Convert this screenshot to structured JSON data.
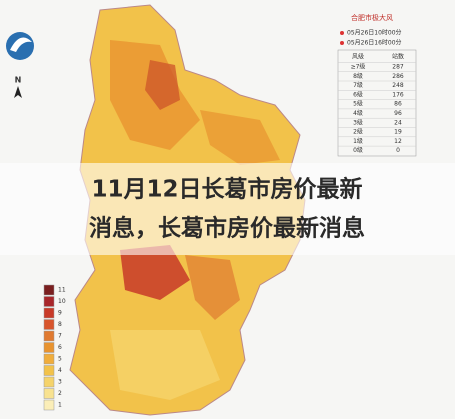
{
  "banner": {
    "lines": [
      "11月12日长葛市房价最新",
      "消息，长葛市房价最新消息"
    ]
  },
  "map": {
    "north": "N",
    "legend": [
      "11",
      "10",
      "9",
      "8",
      "7",
      "6",
      "5",
      "4",
      "3",
      "2",
      "1"
    ]
  },
  "wind_table": {
    "title": "合肥市极大风",
    "times": [
      "05月26日10时00分",
      "05月26日16时00分"
    ],
    "header": [
      "风级",
      "站数"
    ],
    "rows": [
      [
        "≥7级",
        "287"
      ],
      [
        "8级",
        "286"
      ],
      [
        "7级",
        "248"
      ],
      [
        "6级",
        "176"
      ],
      [
        "5级",
        "86"
      ],
      [
        "4级",
        "96"
      ],
      [
        "3级",
        "24"
      ],
      [
        "2级",
        "19"
      ],
      [
        "1级",
        "12"
      ],
      [
        "0级",
        "0"
      ]
    ]
  }
}
